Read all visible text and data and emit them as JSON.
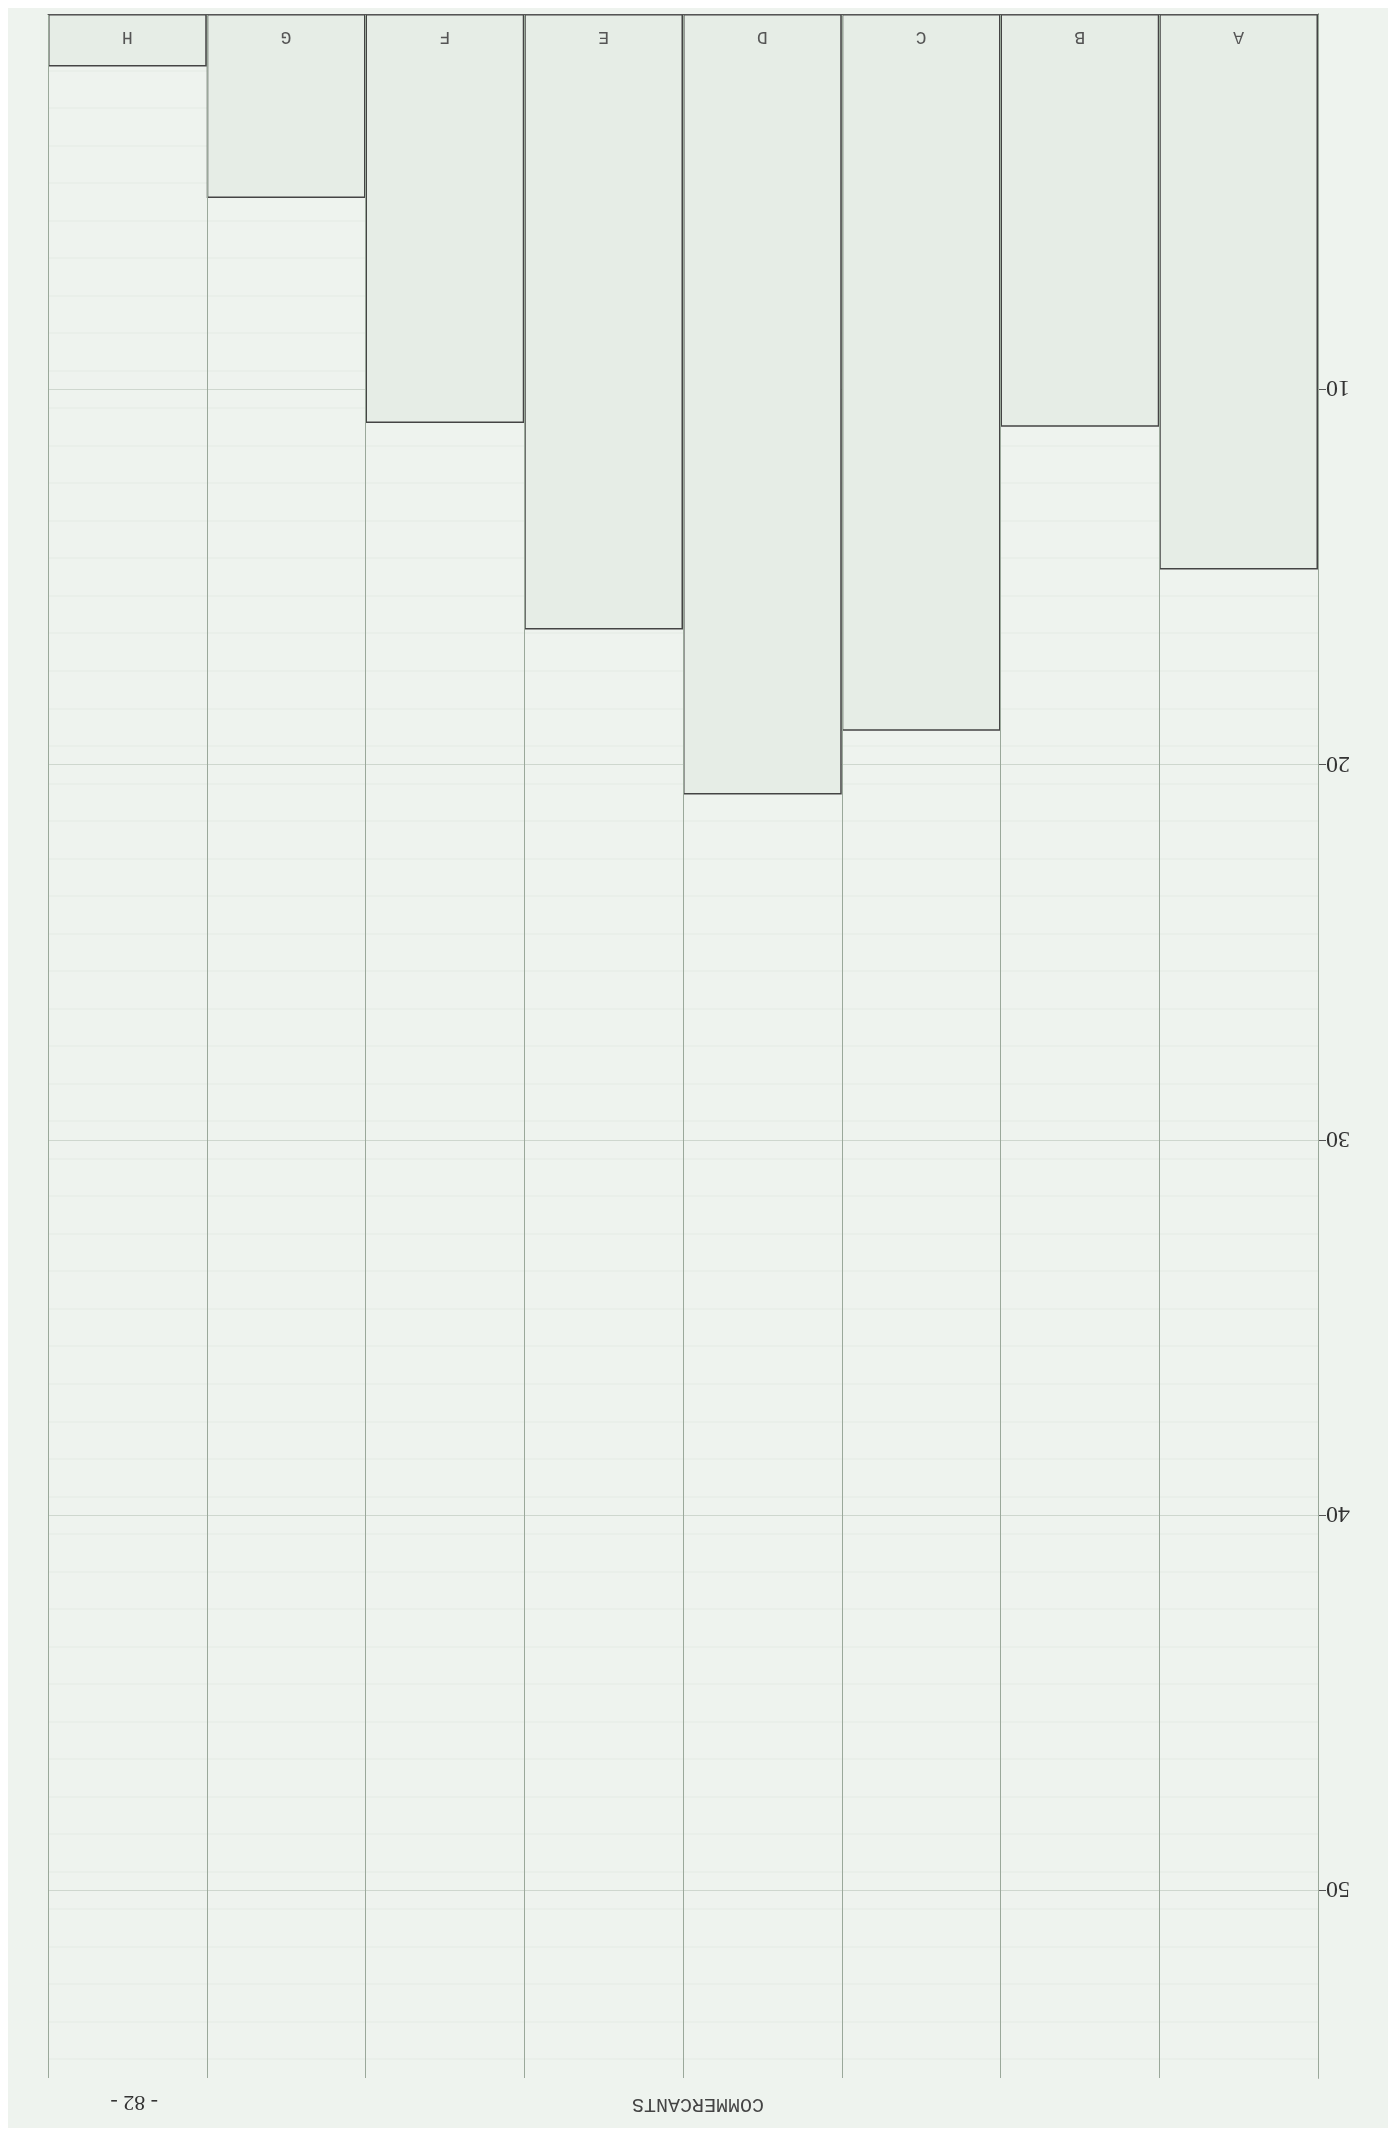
{
  "chart_data": {
    "type": "bar",
    "title": "COMMERCANTS",
    "annotations": [
      "- 82 -"
    ],
    "categories": [
      "H",
      "G",
      "F",
      "E",
      "D",
      "C",
      "B",
      "A"
    ],
    "values": [
      1.4,
      4.9,
      10.9,
      16.4,
      20.8,
      19.1,
      11.0,
      14.8
    ],
    "color": "#e6ede6",
    "ylim": [
      55,
      0
    ],
    "yticks": [
      10,
      20,
      30,
      40,
      50
    ],
    "grid": true
  }
}
